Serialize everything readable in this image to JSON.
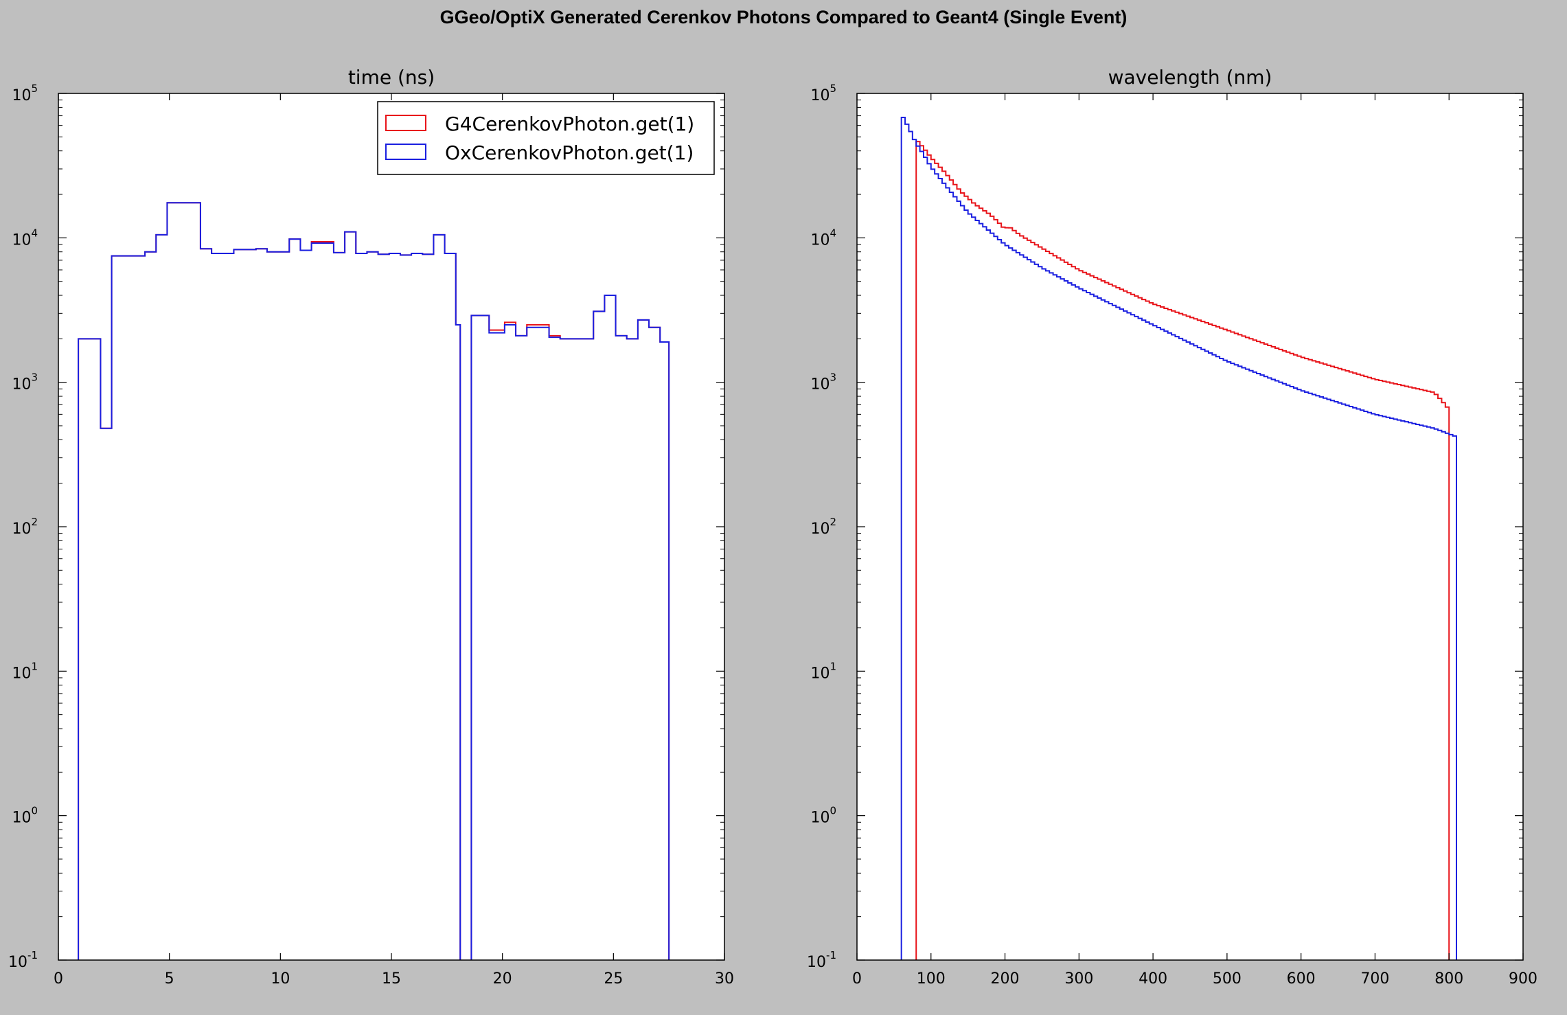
{
  "title": "GGeo/OptiX Generated Cerenkov Photons Compared to Geant4 (Single Event)",
  "colors": {
    "g4": "#e8141a",
    "ox": "#1a1fe0",
    "background": "#bfbfbf",
    "plot_bg": "#ffffff"
  },
  "chart_data": [
    {
      "type": "histogram",
      "title": "time (ns)",
      "xlabel": "",
      "ylabel": "",
      "xlim": [
        0,
        30
      ],
      "ylim": [
        0.1,
        100000
      ],
      "yscale": "log",
      "xticks": [
        "0",
        "5",
        "10",
        "15",
        "20",
        "25",
        "30"
      ],
      "yticks": [
        {
          "base": "10",
          "exp": "5"
        },
        {
          "base": "10",
          "exp": "4"
        },
        {
          "base": "10",
          "exp": "3"
        },
        {
          "base": "10",
          "exp": "2"
        },
        {
          "base": "10",
          "exp": "1"
        },
        {
          "base": "10",
          "exp": "0"
        },
        {
          "base": "10",
          "exp": "-1"
        }
      ],
      "legend_position": "top-right",
      "series": [
        {
          "name": "G4CerenkovPhoton.get(1)",
          "color": "#e8141a",
          "edges": [
            0.9,
            1.9,
            2.4,
            3.9,
            4.4,
            4.9,
            6.4,
            6.9,
            7.9,
            8.9,
            9.4,
            10.4,
            10.9,
            11.4,
            12.4,
            12.9,
            13.4,
            13.9,
            14.4,
            14.9,
            15.4,
            15.9,
            16.4,
            16.9,
            17.4,
            17.9,
            18.1
          ],
          "values": [
            2000,
            480,
            7500,
            8000,
            10500,
            17500,
            8400,
            7800,
            8300,
            8400,
            8000,
            9800,
            8200,
            9400,
            7900,
            11000,
            7800,
            8000,
            7700,
            7800,
            7600,
            7800,
            7700,
            10500,
            7800,
            2500
          ]
        },
        {
          "name": "OxCerenkovPhoton.get(1)",
          "color": "#1a1fe0",
          "edges": [
            0.9,
            1.9,
            2.4,
            3.9,
            4.4,
            4.9,
            6.4,
            6.9,
            7.9,
            8.9,
            9.4,
            10.4,
            10.9,
            11.4,
            12.4,
            12.9,
            13.4,
            13.9,
            14.4,
            14.9,
            15.4,
            15.9,
            16.4,
            16.9,
            17.4,
            17.9,
            18.1
          ],
          "values": [
            2000,
            480,
            7500,
            8000,
            10500,
            17500,
            8400,
            7800,
            8300,
            8400,
            8000,
            9800,
            8200,
            9200,
            7900,
            11000,
            7800,
            8000,
            7700,
            7800,
            7600,
            7800,
            7700,
            10500,
            7800,
            2500
          ]
        },
        {
          "name": "",
          "color": "#e8141a",
          "edges": [
            18.6,
            19.4,
            20.1,
            20.6,
            21.1,
            22.1,
            22.6,
            23.6,
            24.1,
            24.6,
            25.1,
            25.6,
            26.1,
            26.6,
            27.1,
            27.5
          ],
          "values": [
            2900,
            2300,
            2600,
            2100,
            2500,
            2100,
            2000,
            2000,
            3100,
            4000,
            2100,
            2000,
            2700,
            2400,
            1900
          ]
        },
        {
          "name": "",
          "color": "#1a1fe0",
          "edges": [
            18.6,
            19.4,
            20.1,
            20.6,
            21.1,
            22.1,
            22.6,
            23.6,
            24.1,
            24.6,
            25.1,
            25.6,
            26.1,
            26.6,
            27.1,
            27.5
          ],
          "values": [
            2900,
            2200,
            2500,
            2100,
            2400,
            2050,
            2000,
            2000,
            3100,
            4000,
            2100,
            2000,
            2700,
            2400,
            1900
          ]
        }
      ]
    },
    {
      "type": "histogram",
      "title": "wavelength (nm)",
      "xlabel": "",
      "ylabel": "",
      "xlim": [
        0,
        900
      ],
      "ylim": [
        0.1,
        100000
      ],
      "yscale": "log",
      "xticks": [
        "0",
        "100",
        "200",
        "300",
        "400",
        "500",
        "600",
        "700",
        "800",
        "900"
      ],
      "yticks": [
        {
          "base": "10",
          "exp": "5"
        },
        {
          "base": "10",
          "exp": "4"
        },
        {
          "base": "10",
          "exp": "3"
        },
        {
          "base": "10",
          "exp": "2"
        },
        {
          "base": "10",
          "exp": "1"
        },
        {
          "base": "10",
          "exp": "0"
        },
        {
          "base": "10",
          "exp": "-1"
        }
      ],
      "series": [
        {
          "name": "G4CerenkovPhoton.get(1)",
          "color": "#e8141a",
          "x_start": 80,
          "x_end": 800,
          "points": [
            [
              80,
              48000
            ],
            [
              90,
              42000
            ],
            [
              100,
              36000
            ],
            [
              120,
              28000
            ],
            [
              140,
              21000
            ],
            [
              160,
              17000
            ],
            [
              180,
              14500
            ],
            [
              190,
              13000
            ],
            [
              200,
              11500
            ],
            [
              205,
              12000
            ],
            [
              220,
              10500
            ],
            [
              250,
              8500
            ],
            [
              300,
              6000
            ],
            [
              400,
              3500
            ],
            [
              500,
              2300
            ],
            [
              600,
              1500
            ],
            [
              700,
              1050
            ],
            [
              780,
              850
            ],
            [
              790,
              750
            ],
            [
              800,
              650
            ]
          ]
        },
        {
          "name": "OxCerenkovPhoton.get(1)",
          "color": "#1a1fe0",
          "x_start": 60,
          "x_end": 810,
          "points": [
            [
              60,
              72000
            ],
            [
              70,
              58000
            ],
            [
              80,
              45000
            ],
            [
              90,
              38000
            ],
            [
              100,
              31000
            ],
            [
              120,
              23000
            ],
            [
              150,
              15000
            ],
            [
              200,
              9000
            ],
            [
              250,
              6200
            ],
            [
              300,
              4500
            ],
            [
              400,
              2500
            ],
            [
              500,
              1400
            ],
            [
              600,
              880
            ],
            [
              700,
              600
            ],
            [
              780,
              480
            ],
            [
              810,
              420
            ]
          ]
        }
      ]
    }
  ]
}
